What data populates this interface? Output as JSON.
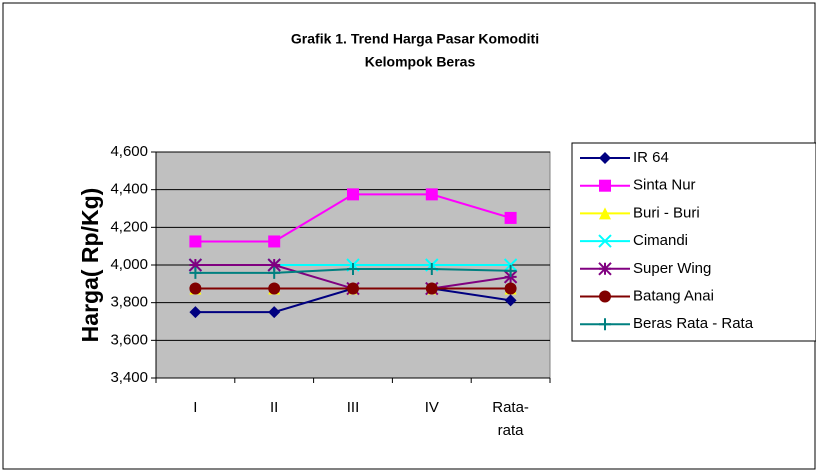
{
  "chart_data": {
    "type": "line",
    "title": "Grafik 1.    Trend Harga Pasar Komoditi",
    "subtitle": "Kelompok Beras",
    "y_label": "Harga( Rp/Kg)",
    "categories": [
      "I",
      "II",
      "III",
      "IV",
      "Rata-rata"
    ],
    "series": [
      {
        "name": "IR 64",
        "color": "#000080",
        "marker": "diamond",
        "values": [
          3750,
          3750,
          3875,
          3875,
          3812
        ]
      },
      {
        "name": "Sinta Nur",
        "color": "#ff00ff",
        "marker": "square",
        "values": [
          4125,
          4125,
          4375,
          4375,
          4250
        ]
      },
      {
        "name": "Buri - Buri",
        "color": "#ffff00",
        "marker": "triangle",
        "values": [
          3875,
          3875,
          3875,
          3875,
          3875
        ]
      },
      {
        "name": "Cimandi",
        "color": "#00ffff",
        "marker": "x",
        "values": [
          4000,
          4000,
          4000,
          4000,
          4000
        ]
      },
      {
        "name": "Super Wing",
        "color": "#800080",
        "marker": "star",
        "values": [
          4000,
          4000,
          3875,
          3875,
          3937
        ]
      },
      {
        "name": "Batang Anai",
        "color": "#800000",
        "marker": "circle",
        "values": [
          3875,
          3875,
          3875,
          3875,
          3875
        ]
      },
      {
        "name": "Beras  Rata - Rata",
        "color": "#008080",
        "marker": "plus",
        "values": [
          3958,
          3958,
          3979,
          3979,
          3969
        ]
      }
    ],
    "ylim": [
      3400,
      4600
    ],
    "yticks": [
      {
        "value": 3400,
        "label": "3,400"
      },
      {
        "value": 3600,
        "label": "3,600"
      },
      {
        "value": 3800,
        "label": "3,800"
      },
      {
        "value": 4000,
        "label": "4,000"
      },
      {
        "value": 4200,
        "label": "4,200"
      },
      {
        "value": 4400,
        "label": "4,400"
      },
      {
        "value": 4600,
        "label": "4,600"
      }
    ],
    "grid": true,
    "legend": "right",
    "plot_background": "#c0c0c0"
  }
}
